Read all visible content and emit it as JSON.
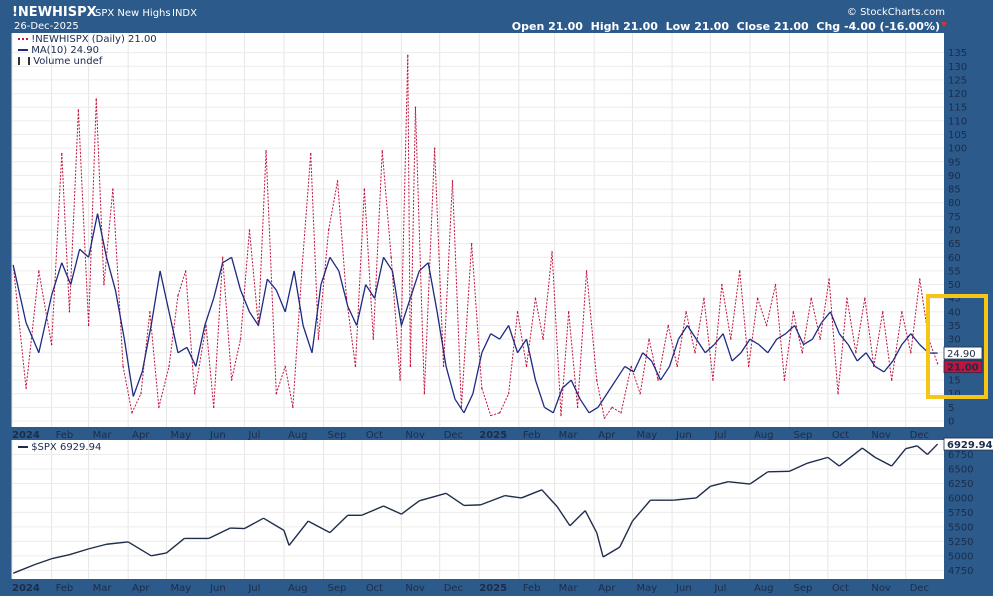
{
  "header": {
    "symbol": "!NEWHISPX",
    "name": "SPX New Highs",
    "exchange": "INDX",
    "date": "26-Dec-2025",
    "brand": "© StockCharts.com",
    "ohlc": [
      {
        "label": "Open",
        "value": "21.00"
      },
      {
        "label": "High",
        "value": "21.00"
      },
      {
        "label": "Low",
        "value": "21.00"
      },
      {
        "label": "Close",
        "value": "21.00"
      },
      {
        "label": "Chg",
        "value": "-4.00 (-16.00%)"
      }
    ]
  },
  "legend_top": {
    "series": "!NEWHISPX (Daily) 21.00",
    "ma": "MA(10) 24.90",
    "volume": "Volume undef"
  },
  "legend_bottom": "$SPX 6929.94",
  "price_tags": {
    "ma": "24.90",
    "close": "21.00",
    "spx": "6929.94"
  },
  "colors": {
    "background": "#2c5a8a",
    "panel": "#ffffff",
    "series": "#c0143c",
    "ma": "#1e2a80",
    "spx": "#1f2d4a",
    "highlight": "#f5c518"
  },
  "chart_data": [
    {
      "type": "line",
      "title": "SPX New Highs",
      "series": [
        {
          "name": "!NEWHISPX (Daily)",
          "style": "dotted",
          "x": [
            "2024-01-02",
            "2024-01-12",
            "2024-01-22",
            "2024-02-01",
            "2024-02-09",
            "2024-02-15",
            "2024-02-22",
            "2024-03-01",
            "2024-03-07",
            "2024-03-13",
            "2024-03-20",
            "2024-03-28",
            "2024-04-04",
            "2024-04-11",
            "2024-04-18",
            "2024-04-25",
            "2024-05-03",
            "2024-05-10",
            "2024-05-16",
            "2024-05-23",
            "2024-06-01",
            "2024-06-07",
            "2024-06-14",
            "2024-06-21",
            "2024-06-28",
            "2024-07-05",
            "2024-07-12",
            "2024-07-18",
            "2024-07-26",
            "2024-08-02",
            "2024-08-08",
            "2024-08-15",
            "2024-08-22",
            "2024-08-28",
            "2024-09-05",
            "2024-09-12",
            "2024-09-19",
            "2024-09-26",
            "2024-10-03",
            "2024-10-10",
            "2024-10-17",
            "2024-10-24",
            "2024-10-31",
            "2024-11-06",
            "2024-11-08",
            "2024-11-12",
            "2024-11-19",
            "2024-11-27",
            "2024-12-04",
            "2024-12-11",
            "2024-12-18",
            "2024-12-26",
            "2025-01-03",
            "2025-01-10",
            "2025-01-17",
            "2025-01-24",
            "2025-01-31",
            "2025-02-07",
            "2025-02-14",
            "2025-02-20",
            "2025-02-27",
            "2025-03-06",
            "2025-03-12",
            "2025-03-19",
            "2025-03-26",
            "2025-04-03",
            "2025-04-09",
            "2025-04-15",
            "2025-04-22",
            "2025-04-30",
            "2025-05-07",
            "2025-05-14",
            "2025-05-21",
            "2025-05-29",
            "2025-06-05",
            "2025-06-12",
            "2025-06-19",
            "2025-06-26",
            "2025-07-03",
            "2025-07-10",
            "2025-07-17",
            "2025-07-24",
            "2025-07-31",
            "2025-08-07",
            "2025-08-14",
            "2025-08-21",
            "2025-08-28",
            "2025-09-04",
            "2025-09-11",
            "2025-09-18",
            "2025-09-25",
            "2025-10-02",
            "2025-10-09",
            "2025-10-16",
            "2025-10-23",
            "2025-10-30",
            "2025-11-06",
            "2025-11-13",
            "2025-11-20",
            "2025-11-28",
            "2025-12-05",
            "2025-12-12",
            "2025-12-19",
            "2025-12-26"
          ],
          "values": [
            57,
            12,
            55,
            28,
            98,
            40,
            114,
            35,
            118,
            50,
            85,
            20,
            3,
            10,
            40,
            5,
            20,
            46,
            55,
            10,
            35,
            5,
            60,
            15,
            30,
            70,
            35,
            99,
            10,
            20,
            5,
            55,
            98,
            30,
            70,
            88,
            45,
            20,
            85,
            30,
            99,
            60,
            15,
            134,
            20,
            115,
            10,
            100,
            20,
            88,
            5,
            65,
            12,
            2,
            3,
            10,
            40,
            20,
            45,
            30,
            62,
            2,
            40,
            5,
            55,
            15,
            1,
            5,
            3,
            20,
            10,
            30,
            15,
            35,
            20,
            40,
            25,
            45,
            15,
            50,
            30,
            55,
            20,
            45,
            35,
            50,
            15,
            40,
            25,
            45,
            30,
            52,
            10,
            45,
            25,
            45,
            20,
            40,
            15,
            40,
            25,
            52,
            30,
            21
          ]
        },
        {
          "name": "MA(10)",
          "style": "solid",
          "x": [
            "2024-01-02",
            "2024-01-12",
            "2024-01-22",
            "2024-02-01",
            "2024-02-09",
            "2024-02-16",
            "2024-02-23",
            "2024-03-01",
            "2024-03-08",
            "2024-03-15",
            "2024-03-22",
            "2024-03-29",
            "2024-04-05",
            "2024-04-12",
            "2024-04-19",
            "2024-04-26",
            "2024-05-03",
            "2024-05-10",
            "2024-05-17",
            "2024-05-24",
            "2024-05-31",
            "2024-06-07",
            "2024-06-14",
            "2024-06-21",
            "2024-06-28",
            "2024-07-05",
            "2024-07-12",
            "2024-07-19",
            "2024-07-26",
            "2024-08-02",
            "2024-08-09",
            "2024-08-16",
            "2024-08-23",
            "2024-08-30",
            "2024-09-06",
            "2024-09-13",
            "2024-09-20",
            "2024-09-27",
            "2024-10-04",
            "2024-10-11",
            "2024-10-18",
            "2024-10-25",
            "2024-11-01",
            "2024-11-08",
            "2024-11-15",
            "2024-11-22",
            "2024-11-29",
            "2024-12-06",
            "2024-12-13",
            "2024-12-20",
            "2024-12-27",
            "2025-01-03",
            "2025-01-10",
            "2025-01-17",
            "2025-01-24",
            "2025-01-31",
            "2025-02-07",
            "2025-02-14",
            "2025-02-21",
            "2025-02-28",
            "2025-03-07",
            "2025-03-14",
            "2025-03-21",
            "2025-03-28",
            "2025-04-04",
            "2025-04-11",
            "2025-04-18",
            "2025-04-25",
            "2025-05-02",
            "2025-05-09",
            "2025-05-16",
            "2025-05-23",
            "2025-05-30",
            "2025-06-06",
            "2025-06-13",
            "2025-06-20",
            "2025-06-27",
            "2025-07-04",
            "2025-07-11",
            "2025-07-18",
            "2025-07-25",
            "2025-08-01",
            "2025-08-08",
            "2025-08-15",
            "2025-08-22",
            "2025-08-29",
            "2025-09-05",
            "2025-09-12",
            "2025-09-19",
            "2025-09-26",
            "2025-10-03",
            "2025-10-10",
            "2025-10-17",
            "2025-10-24",
            "2025-10-31",
            "2025-11-07",
            "2025-11-14",
            "2025-11-21",
            "2025-11-28",
            "2025-12-05",
            "2025-12-12",
            "2025-12-19",
            "2025-12-26"
          ],
          "values": [
            57,
            36,
            25,
            46,
            58,
            50,
            63,
            60,
            76,
            60,
            48,
            30,
            9,
            18,
            35,
            55,
            40,
            25,
            27,
            20,
            35,
            45,
            58,
            60,
            48,
            40,
            35,
            52,
            48,
            40,
            55,
            35,
            25,
            50,
            60,
            55,
            42,
            35,
            50,
            45,
            60,
            55,
            35,
            45,
            55,
            58,
            40,
            20,
            8,
            3,
            10,
            25,
            32,
            30,
            35,
            25,
            30,
            15,
            5,
            3,
            12,
            15,
            8,
            3,
            5,
            10,
            15,
            20,
            18,
            25,
            22,
            15,
            20,
            30,
            35,
            30,
            25,
            28,
            32,
            22,
            25,
            30,
            28,
            25,
            30,
            32,
            35,
            28,
            30,
            36,
            40,
            32,
            28,
            22,
            25,
            20,
            18,
            22,
            28,
            32,
            28,
            24.9,
            24.9
          ]
        }
      ],
      "ylim": [
        0,
        140
      ],
      "yticks": [
        0,
        5,
        10,
        15,
        20,
        25,
        30,
        35,
        40,
        45,
        50,
        55,
        60,
        65,
        70,
        75,
        80,
        85,
        90,
        95,
        100,
        105,
        110,
        115,
        120,
        125,
        130,
        135
      ],
      "ytick_labels": [
        "0",
        "5",
        "10",
        "15",
        "",
        "",
        "30",
        "35",
        "40",
        "45",
        "50",
        "55",
        "60",
        "65",
        "70",
        "75",
        "80",
        "85",
        "90",
        "95",
        "100",
        "105",
        "110",
        "115",
        "120",
        "125",
        "130",
        "135"
      ],
      "xlim": [
        "2024-01-01",
        "2025-12-31"
      ],
      "xtick_labels": [
        "2024",
        "Feb",
        "Mar",
        "Apr",
        "May",
        "Jun",
        "Jul",
        "Aug",
        "Sep",
        "Oct",
        "Nov",
        "Dec",
        "2025",
        "Feb",
        "Mar",
        "Apr",
        "May",
        "Jun",
        "Jul",
        "Aug",
        "Sep",
        "Oct",
        "Nov",
        "Dec"
      ],
      "xticks": [
        "2024-01-01",
        "2024-02-01",
        "2024-03-01",
        "2024-04-01",
        "2024-05-01",
        "2024-06-01",
        "2024-07-01",
        "2024-08-01",
        "2024-09-01",
        "2024-10-01",
        "2024-11-01",
        "2024-12-01",
        "2025-01-01",
        "2025-02-01",
        "2025-03-01",
        "2025-04-01",
        "2025-05-01",
        "2025-06-01",
        "2025-07-01",
        "2025-08-01",
        "2025-09-01",
        "2025-10-01",
        "2025-11-01",
        "2025-12-01"
      ],
      "grid": true
    },
    {
      "type": "line",
      "series": [
        {
          "name": "$SPX",
          "x": [
            "2024-01-02",
            "2024-01-19",
            "2024-02-01",
            "2024-02-15",
            "2024-03-01",
            "2024-03-15",
            "2024-04-01",
            "2024-04-19",
            "2024-05-01",
            "2024-05-15",
            "2024-06-03",
            "2024-06-20",
            "2024-07-01",
            "2024-07-16",
            "2024-08-01",
            "2024-08-05",
            "2024-08-20",
            "2024-09-06",
            "2024-09-20",
            "2024-10-01",
            "2024-10-18",
            "2024-11-01",
            "2024-11-15",
            "2024-12-06",
            "2024-12-20",
            "2025-01-02",
            "2025-01-21",
            "2025-02-03",
            "2025-02-19",
            "2025-03-03",
            "2025-03-13",
            "2025-03-25",
            "2025-04-03",
            "2025-04-08",
            "2025-04-21",
            "2025-05-01",
            "2025-05-15",
            "2025-06-02",
            "2025-06-20",
            "2025-07-01",
            "2025-07-15",
            "2025-08-01",
            "2025-08-15",
            "2025-09-01",
            "2025-09-15",
            "2025-10-01",
            "2025-10-10",
            "2025-10-28",
            "2025-11-07",
            "2025-11-20",
            "2025-12-01",
            "2025-12-10",
            "2025-12-18",
            "2025-12-26"
          ],
          "values": [
            4700,
            4850,
            4950,
            5020,
            5120,
            5200,
            5240,
            5000,
            5050,
            5300,
            5300,
            5480,
            5470,
            5650,
            5440,
            5180,
            5600,
            5400,
            5700,
            5700,
            5860,
            5720,
            5950,
            6080,
            5870,
            5880,
            6040,
            6000,
            6140,
            5850,
            5520,
            5780,
            5400,
            4980,
            5150,
            5600,
            5960,
            5960,
            6000,
            6200,
            6280,
            6240,
            6450,
            6460,
            6600,
            6700,
            6550,
            6860,
            6700,
            6550,
            6850,
            6900,
            6750,
            6929.94
          ]
        }
      ],
      "ylim": [
        4600,
        7000
      ],
      "yticks": [
        4750,
        5000,
        5250,
        5500,
        5750,
        6000,
        6250,
        6500,
        6750
      ],
      "ytick_labels": [
        "4750",
        "5000",
        "5250",
        "5500",
        "5750",
        "6000",
        "6250",
        "6500",
        "6750"
      ],
      "xtick_labels": [
        "2024",
        "Feb",
        "Mar",
        "Apr",
        "May",
        "Jun",
        "Jul",
        "Aug",
        "Sep",
        "Oct",
        "Nov",
        "Dec",
        "2025",
        "Feb",
        "Mar",
        "Apr",
        "May",
        "Jun",
        "Jul",
        "Aug",
        "Sep",
        "Oct",
        "Nov",
        "Dec"
      ],
      "grid": true
    }
  ]
}
